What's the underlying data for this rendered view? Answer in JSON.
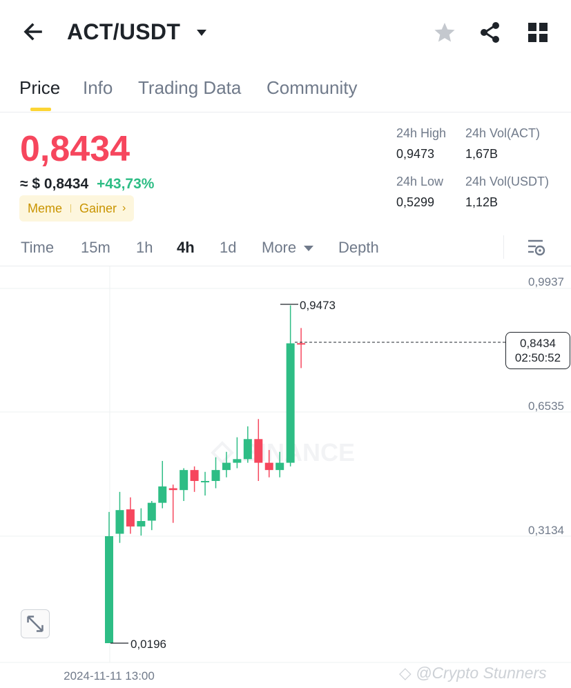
{
  "header": {
    "pair": "ACT/USDT",
    "icons": [
      "back-arrow-icon",
      "dropdown-caret-icon",
      "star-icon",
      "share-icon",
      "grid-icon"
    ]
  },
  "tabs": [
    {
      "label": "Price",
      "active": true
    },
    {
      "label": "Info",
      "active": false
    },
    {
      "label": "Trading Data",
      "active": false
    },
    {
      "label": "Community",
      "active": false
    }
  ],
  "ticker": {
    "price": "0,8434",
    "usd_prefix": "≈ $",
    "usd_value": "0,8434",
    "change": "+43,73%",
    "tags": [
      "Meme",
      "Gainer"
    ],
    "price_color": "#f6465d",
    "up_color": "#2ebd85",
    "stats": {
      "high_label": "24h High",
      "high_value": "0,9473",
      "low_label": "24h Low",
      "low_value": "0,5299",
      "vol_base_label": "24h Vol(ACT)",
      "vol_base_value": "1,67B",
      "vol_quote_label": "24h Vol(USDT)",
      "vol_quote_value": "1,12B"
    }
  },
  "intervals": [
    {
      "label": "Time",
      "active": false
    },
    {
      "label": "15m",
      "active": false
    },
    {
      "label": "1h",
      "active": false
    },
    {
      "label": "4h",
      "active": true
    },
    {
      "label": "1d",
      "active": false
    },
    {
      "label": "More",
      "active": false
    },
    {
      "label": "Depth",
      "active": false
    }
  ],
  "chart": {
    "axis_labels": [
      "0,9937",
      "0,6535",
      "0,3134"
    ],
    "high_marker": "0,9473",
    "low_marker": "0,0196",
    "current_price": "0,8434",
    "countdown": "02:50:52",
    "x_label": "2024-11-11 13:00",
    "watermark_logo": "BINANCE",
    "credit": "@Crypto Stunners"
  },
  "chart_data": {
    "type": "candlestick",
    "ylim": [
      0.0196,
      0.9937
    ],
    "y_ticks": [
      0.9937,
      0.6535,
      0.3134
    ],
    "x_tick": "2024-11-11 13:00",
    "grid": true,
    "candles": [
      {
        "o": 0.3134,
        "h": 0.38,
        "l": 0.0196,
        "c": 0.0196,
        "up": true
      },
      {
        "o": 0.32,
        "h": 0.435,
        "l": 0.295,
        "c": 0.385,
        "up": true
      },
      {
        "o": 0.387,
        "h": 0.42,
        "l": 0.32,
        "c": 0.34,
        "up": false
      },
      {
        "o": 0.34,
        "h": 0.39,
        "l": 0.315,
        "c": 0.355,
        "up": true
      },
      {
        "o": 0.356,
        "h": 0.41,
        "l": 0.33,
        "c": 0.405,
        "up": true
      },
      {
        "o": 0.405,
        "h": 0.52,
        "l": 0.39,
        "c": 0.45,
        "up": true
      },
      {
        "o": 0.445,
        "h": 0.455,
        "l": 0.35,
        "c": 0.44,
        "up": false
      },
      {
        "o": 0.44,
        "h": 0.5,
        "l": 0.41,
        "c": 0.495,
        "up": true
      },
      {
        "o": 0.495,
        "h": 0.505,
        "l": 0.435,
        "c": 0.465,
        "up": false
      },
      {
        "o": 0.465,
        "h": 0.49,
        "l": 0.425,
        "c": 0.465,
        "up": true
      },
      {
        "o": 0.465,
        "h": 0.53,
        "l": 0.445,
        "c": 0.495,
        "up": true
      },
      {
        "o": 0.495,
        "h": 0.545,
        "l": 0.475,
        "c": 0.515,
        "up": true
      },
      {
        "o": 0.515,
        "h": 0.585,
        "l": 0.5,
        "c": 0.525,
        "up": true
      },
      {
        "o": 0.525,
        "h": 0.615,
        "l": 0.515,
        "c": 0.58,
        "up": true
      },
      {
        "o": 0.58,
        "h": 0.635,
        "l": 0.465,
        "c": 0.515,
        "up": false
      },
      {
        "o": 0.515,
        "h": 0.55,
        "l": 0.475,
        "c": 0.495,
        "up": false
      },
      {
        "o": 0.495,
        "h": 0.545,
        "l": 0.475,
        "c": 0.515,
        "up": true
      },
      {
        "o": 0.515,
        "h": 0.9473,
        "l": 0.505,
        "c": 0.843,
        "up": true
      },
      {
        "o": 0.843,
        "h": 0.885,
        "l": 0.775,
        "c": 0.8434,
        "up": false
      }
    ]
  }
}
